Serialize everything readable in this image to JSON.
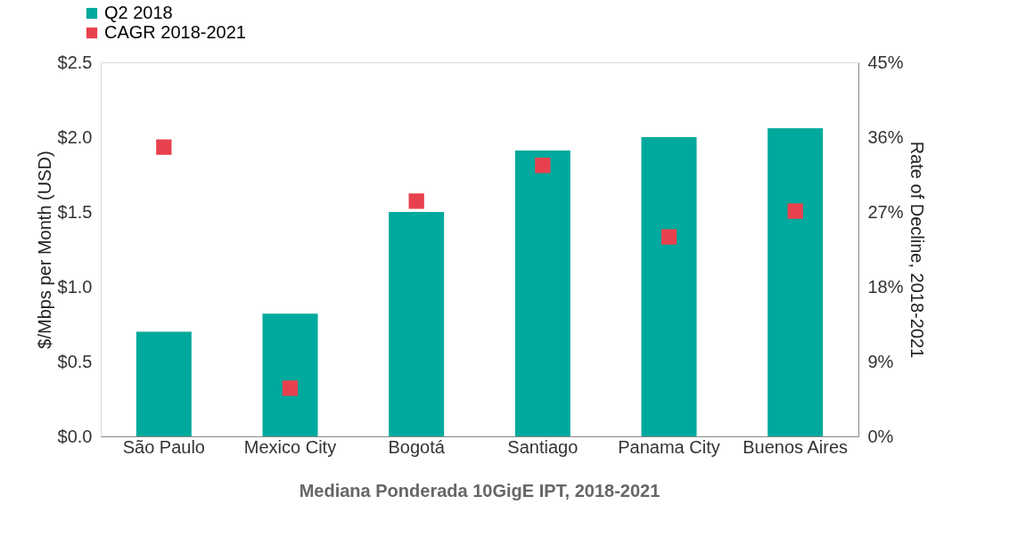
{
  "chart_data": {
    "type": "bar",
    "categories": [
      "São Paulo",
      "Mexico City",
      "Bogotá",
      "Santiago",
      "Panama City",
      "Buenos Aires"
    ],
    "series": [
      {
        "name": "Q2 2018",
        "color": "#00a99d",
        "values": [
          0.7,
          0.82,
          1.5,
          1.91,
          2.0,
          2.06
        ]
      },
      {
        "name": "CAGR 2018-2021",
        "type": "scatter",
        "axis": "y2",
        "color": "#e8414e",
        "values": [
          34.8,
          5.8,
          28.3,
          32.6,
          24.0,
          27.1
        ]
      }
    ],
    "ylabel": "$/Mbps per Month (USD)",
    "y2label": "Rate of Decline, 2018-2021",
    "ylim": [
      0,
      2.5
    ],
    "yticks": [
      {
        "value": 0,
        "label": "$0.0"
      },
      {
        "value": 0.5,
        "label": "$0.5"
      },
      {
        "value": 1.0,
        "label": "$1.0"
      },
      {
        "value": 1.5,
        "label": "$1.5"
      },
      {
        "value": 2.0,
        "label": "$2.0"
      },
      {
        "value": 2.5,
        "label": "$2.5"
      }
    ],
    "y2lim": [
      0,
      45
    ],
    "y2ticks": [
      {
        "value": 0,
        "label": "0%"
      },
      {
        "value": 9,
        "label": "9%"
      },
      {
        "value": 18,
        "label": "18%"
      },
      {
        "value": 27,
        "label": "27%"
      },
      {
        "value": 36,
        "label": "36%"
      },
      {
        "value": 45,
        "label": "45%"
      }
    ],
    "grid": false,
    "marker": "square",
    "legend": "top left",
    "annotations": [
      "Mediana Ponderada 10GigE IPT, 2018-2021"
    ]
  }
}
